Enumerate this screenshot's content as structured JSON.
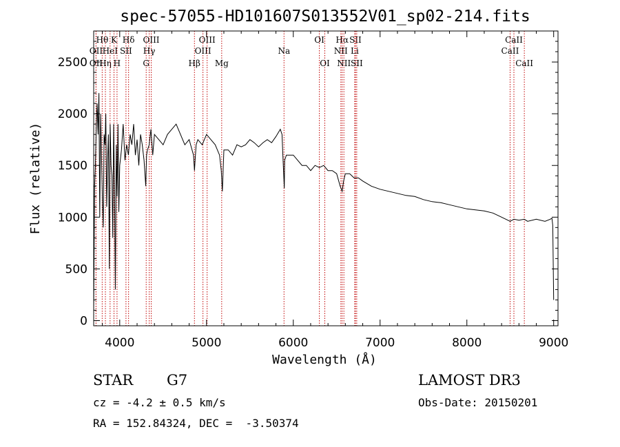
{
  "chart_data": {
    "type": "line",
    "title": "spec-57055-HD101607S013552V01_sp02-214.fits",
    "xlabel": "Wavelength (Å)",
    "ylabel": "Flux (relative)",
    "xlim": [
      3700,
      9050
    ],
    "ylim": [
      -50,
      2800
    ],
    "x_ticks": [
      4000,
      5000,
      6000,
      7000,
      8000,
      9000
    ],
    "x_tick_labels": [
      "4000",
      "5000",
      "6000",
      "7000",
      "8000",
      "9000"
    ],
    "y_ticks": [
      0,
      500,
      1000,
      1500,
      2000,
      2500
    ],
    "y_tick_labels": [
      "0",
      "500",
      "1000",
      "1500",
      "2000",
      "2500"
    ],
    "series": [
      {
        "name": "flux",
        "x": [
          3700,
          3710,
          3720,
          3730,
          3740,
          3750,
          3760,
          3770,
          3780,
          3790,
          3800,
          3810,
          3820,
          3830,
          3840,
          3850,
          3860,
          3870,
          3880,
          3890,
          3900,
          3910,
          3920,
          3930,
          3940,
          3950,
          3960,
          3970,
          3980,
          3990,
          4000,
          4020,
          4040,
          4060,
          4080,
          4100,
          4120,
          4140,
          4160,
          4180,
          4200,
          4220,
          4240,
          4260,
          4280,
          4300,
          4310,
          4320,
          4340,
          4360,
          4380,
          4400,
          4450,
          4500,
          4550,
          4600,
          4650,
          4700,
          4750,
          4800,
          4850,
          4861,
          4880,
          4900,
          4950,
          5000,
          5050,
          5100,
          5150,
          5170,
          5183,
          5200,
          5250,
          5300,
          5350,
          5400,
          5450,
          5500,
          5550,
          5600,
          5650,
          5700,
          5750,
          5800,
          5850,
          5870,
          5880,
          5890,
          5896,
          5900,
          5920,
          5950,
          6000,
          6050,
          6100,
          6150,
          6200,
          6250,
          6300,
          6350,
          6400,
          6450,
          6500,
          6540,
          6563,
          6580,
          6600,
          6650,
          6700,
          6750,
          6800,
          6900,
          7000,
          7100,
          7200,
          7300,
          7400,
          7500,
          7600,
          7700,
          7800,
          7900,
          8000,
          8100,
          8200,
          8300,
          8400,
          8498,
          8542,
          8600,
          8662,
          8700,
          8800,
          8900,
          8960,
          8980,
          8990,
          9000
        ],
        "y": [
          80,
          1300,
          1500,
          1900,
          2100,
          1800,
          2200,
          1000,
          2000,
          1600,
          1200,
          900,
          1800,
          1700,
          2000,
          1100,
          1550,
          1800,
          500,
          1900,
          1500,
          1400,
          800,
          1900,
          1300,
          300,
          1700,
          1200,
          1900,
          1050,
          1500,
          1650,
          1900,
          1550,
          1700,
          1600,
          1800,
          1700,
          1900,
          1600,
          1750,
          1500,
          1800,
          1700,
          1550,
          1300,
          1600,
          1650,
          1700,
          1850,
          1600,
          1800,
          1750,
          1700,
          1800,
          1850,
          1900,
          1800,
          1700,
          1750,
          1600,
          1450,
          1700,
          1750,
          1700,
          1800,
          1750,
          1700,
          1600,
          1450,
          1250,
          1650,
          1650,
          1600,
          1700,
          1680,
          1700,
          1750,
          1720,
          1680,
          1720,
          1750,
          1720,
          1780,
          1850,
          1800,
          1600,
          1400,
          1280,
          1550,
          1600,
          1600,
          1600,
          1550,
          1500,
          1500,
          1450,
          1500,
          1480,
          1500,
          1450,
          1450,
          1420,
          1300,
          1250,
          1350,
          1420,
          1420,
          1380,
          1380,
          1350,
          1300,
          1270,
          1250,
          1230,
          1210,
          1200,
          1170,
          1150,
          1140,
          1120,
          1100,
          1080,
          1070,
          1060,
          1040,
          1000,
          960,
          980,
          970,
          980,
          960,
          980,
          960,
          980,
          990,
          920,
          200
        ]
      }
    ],
    "lines": [
      {
        "label": "Hθ",
        "x": 3798,
        "row": 1
      },
      {
        "label": "OII",
        "x": 3727,
        "row": 2
      },
      {
        "label": "OII",
        "x": 3727,
        "row": 3
      },
      {
        "label": "Hη",
        "x": 3835,
        "row": 3
      },
      {
        "label": "HeI",
        "x": 3889,
        "row": 2
      },
      {
        "label": "K",
        "x": 3934,
        "row": 1
      },
      {
        "label": "H",
        "x": 3969,
        "row": 3
      },
      {
        "label": "Hδ",
        "x": 4102,
        "row": 1
      },
      {
        "label": "SII",
        "x": 4072,
        "row": 2
      },
      {
        "label": "OIII",
        "x": 4363,
        "row": 1
      },
      {
        "label": "Hγ",
        "x": 4340,
        "row": 2
      },
      {
        "label": "G",
        "x": 4305,
        "row": 3
      },
      {
        "label": "Hβ",
        "x": 4861,
        "row": 3
      },
      {
        "label": "OIII",
        "x": 4959,
        "row": 2
      },
      {
        "label": "OIII",
        "x": 5007,
        "row": 1
      },
      {
        "label": "Mg",
        "x": 5175,
        "row": 3
      },
      {
        "label": "Na",
        "x": 5893,
        "row": 2
      },
      {
        "label": "OI",
        "x": 6300,
        "row": 1
      },
      {
        "label": "OI",
        "x": 6363,
        "row": 3
      },
      {
        "label": "Hα",
        "x": 6563,
        "row": 1
      },
      {
        "label": "NII",
        "x": 6548,
        "row": 2
      },
      {
        "label": "NII",
        "x": 6583,
        "row": 3
      },
      {
        "label": "SII",
        "x": 6716,
        "row": 1
      },
      {
        "label": "Li",
        "x": 6708,
        "row": 2
      },
      {
        "label": "SII",
        "x": 6731,
        "row": 3
      },
      {
        "label": "CaII",
        "x": 8542,
        "row": 1
      },
      {
        "label": "CaII",
        "x": 8498,
        "row": 2
      },
      {
        "label": "CaII",
        "x": 8662,
        "row": 3
      }
    ]
  },
  "info": {
    "object_class": "STAR",
    "subclass": "G7",
    "survey": "LAMOST DR3",
    "cz": "cz = -4.2 ± 0.5 km/s",
    "obs_date": "Obs-Date: 20150201",
    "coords": "RA = 152.84324, DEC =  -3.50374"
  }
}
